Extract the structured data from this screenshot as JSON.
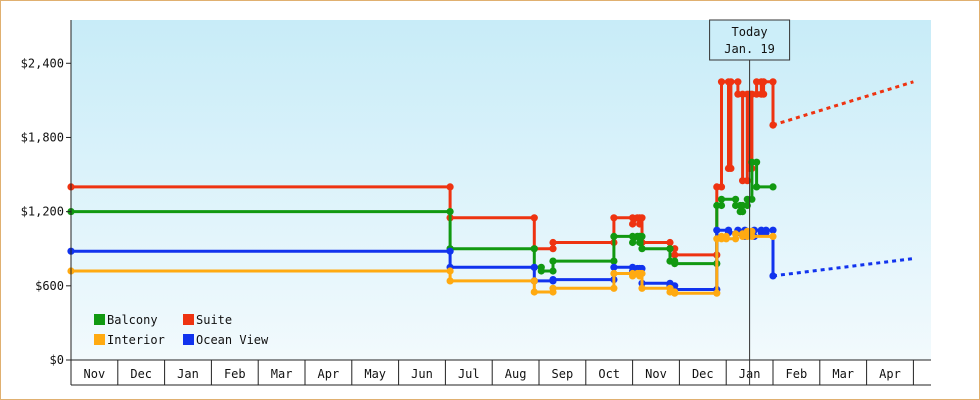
{
  "chart_data": {
    "type": "line",
    "title": "",
    "xlabel": "",
    "ylabel": "",
    "ylim": [
      0,
      2750
    ],
    "yticks": [
      {
        "value": 0,
        "label": "$0"
      },
      {
        "value": 600,
        "label": "$600"
      },
      {
        "value": 1200,
        "label": "$1,200"
      },
      {
        "value": 1800,
        "label": "$1,800"
      },
      {
        "value": 2400,
        "label": "$2,400"
      }
    ],
    "x_range_months": [
      0,
      18
    ],
    "months": [
      "Nov",
      "Dec",
      "Jan",
      "Feb",
      "Mar",
      "Apr",
      "May",
      "Jun",
      "Jul",
      "Aug",
      "Sep",
      "Oct",
      "Nov",
      "Dec",
      "Jan",
      "Feb",
      "Mar",
      "Apr"
    ],
    "today": {
      "x": 14.5,
      "line1": "Today",
      "line2": "Jan. 19"
    },
    "legend": {
      "placement": "bottom-left",
      "entries": [
        {
          "name": "Balcony",
          "color": "#119911"
        },
        {
          "name": "Suite",
          "color": "#ee3311"
        },
        {
          "name": "Interior",
          "color": "#ffaa11"
        },
        {
          "name": "Ocean View",
          "color": "#1133ee"
        }
      ]
    },
    "series": [
      {
        "name": "Suite",
        "color": "#ee3311",
        "points": [
          [
            0,
            1400
          ],
          [
            8.1,
            1400
          ],
          [
            8.1,
            1150
          ],
          [
            9.9,
            1150
          ],
          [
            9.9,
            900
          ],
          [
            10.05,
            900
          ],
          [
            10.05,
            900
          ],
          [
            10.3,
            900
          ],
          [
            10.3,
            950
          ],
          [
            11.6,
            950
          ],
          [
            11.6,
            1150
          ],
          [
            12.0,
            1150
          ],
          [
            12.0,
            1100
          ],
          [
            12.1,
            1150
          ],
          [
            12.15,
            1150
          ],
          [
            12.15,
            1100
          ],
          [
            12.2,
            1150
          ],
          [
            12.2,
            950
          ],
          [
            12.8,
            950
          ],
          [
            12.8,
            900
          ],
          [
            12.9,
            900
          ],
          [
            12.9,
            850
          ],
          [
            13.8,
            850
          ],
          [
            13.8,
            1400
          ],
          [
            13.9,
            1400
          ],
          [
            13.9,
            2250
          ],
          [
            14.05,
            2250
          ],
          [
            14.05,
            1550
          ],
          [
            14.1,
            1550
          ],
          [
            14.1,
            2250
          ],
          [
            14.25,
            2250
          ],
          [
            14.25,
            2150
          ],
          [
            14.35,
            2150
          ],
          [
            14.35,
            1450
          ],
          [
            14.45,
            1450
          ],
          [
            14.45,
            2150
          ],
          [
            14.5,
            2150
          ],
          [
            14.5,
            1550
          ],
          [
            14.55,
            1550
          ],
          [
            14.55,
            2150
          ],
          [
            14.65,
            2150
          ],
          [
            14.65,
            2250
          ],
          [
            14.75,
            2250
          ],
          [
            14.75,
            2150
          ],
          [
            14.8,
            2150
          ],
          [
            14.8,
            2250
          ],
          [
            15.0,
            2250
          ],
          [
            15.0,
            1900
          ]
        ],
        "forecast": [
          [
            15.0,
            1900
          ],
          [
            18.0,
            2250
          ]
        ]
      },
      {
        "name": "Balcony",
        "color": "#119911",
        "points": [
          [
            0,
            1200
          ],
          [
            8.1,
            1200
          ],
          [
            8.1,
            900
          ],
          [
            9.9,
            900
          ],
          [
            9.9,
            750
          ],
          [
            10.05,
            750
          ],
          [
            10.05,
            720
          ],
          [
            10.3,
            720
          ],
          [
            10.3,
            800
          ],
          [
            11.6,
            800
          ],
          [
            11.6,
            1000
          ],
          [
            12.0,
            1000
          ],
          [
            12.0,
            950
          ],
          [
            12.1,
            1000
          ],
          [
            12.15,
            1000
          ],
          [
            12.15,
            950
          ],
          [
            12.2,
            1000
          ],
          [
            12.2,
            900
          ],
          [
            12.8,
            900
          ],
          [
            12.8,
            800
          ],
          [
            12.9,
            800
          ],
          [
            12.9,
            780
          ],
          [
            13.8,
            780
          ],
          [
            13.8,
            1250
          ],
          [
            13.9,
            1250
          ],
          [
            13.9,
            1300
          ],
          [
            14.2,
            1300
          ],
          [
            14.2,
            1250
          ],
          [
            14.3,
            1250
          ],
          [
            14.3,
            1200
          ],
          [
            14.35,
            1200
          ],
          [
            14.35,
            1250
          ],
          [
            14.45,
            1250
          ],
          [
            14.45,
            1300
          ],
          [
            14.55,
            1300
          ],
          [
            14.55,
            1600
          ],
          [
            14.65,
            1600
          ],
          [
            14.65,
            1400
          ],
          [
            15.0,
            1400
          ]
        ],
        "forecast": []
      },
      {
        "name": "Ocean View",
        "color": "#1133ee",
        "points": [
          [
            0,
            880
          ],
          [
            8.1,
            880
          ],
          [
            8.1,
            750
          ],
          [
            9.9,
            750
          ],
          [
            9.9,
            640
          ],
          [
            10.05,
            640
          ],
          [
            10.05,
            640
          ],
          [
            10.3,
            640
          ],
          [
            10.3,
            650
          ],
          [
            11.6,
            650
          ],
          [
            11.6,
            750
          ],
          [
            12.0,
            750
          ],
          [
            12.0,
            720
          ],
          [
            12.1,
            740
          ],
          [
            12.15,
            740
          ],
          [
            12.15,
            720
          ],
          [
            12.2,
            740
          ],
          [
            12.2,
            620
          ],
          [
            12.8,
            620
          ],
          [
            12.8,
            600
          ],
          [
            12.9,
            600
          ],
          [
            12.9,
            570
          ],
          [
            13.8,
            570
          ],
          [
            13.8,
            1050
          ],
          [
            14.05,
            1050
          ],
          [
            14.05,
            1030
          ],
          [
            14.25,
            1030
          ],
          [
            14.25,
            1050
          ],
          [
            14.4,
            1050
          ],
          [
            14.4,
            1000
          ],
          [
            14.6,
            1000
          ],
          [
            14.6,
            1050
          ],
          [
            14.75,
            1050
          ],
          [
            14.75,
            1030
          ],
          [
            14.85,
            1030
          ],
          [
            14.85,
            1050
          ],
          [
            15.0,
            1050
          ],
          [
            15.0,
            680
          ]
        ],
        "forecast": [
          [
            15.0,
            680
          ],
          [
            18.0,
            820
          ]
        ]
      },
      {
        "name": "Interior",
        "color": "#ffaa11",
        "points": [
          [
            0,
            720
          ],
          [
            8.1,
            720
          ],
          [
            8.1,
            640
          ],
          [
            9.9,
            640
          ],
          [
            9.9,
            550
          ],
          [
            10.05,
            550
          ],
          [
            10.05,
            550
          ],
          [
            10.3,
            550
          ],
          [
            10.3,
            580
          ],
          [
            11.6,
            580
          ],
          [
            11.6,
            700
          ],
          [
            12.0,
            700
          ],
          [
            12.0,
            680
          ],
          [
            12.1,
            700
          ],
          [
            12.15,
            700
          ],
          [
            12.15,
            680
          ],
          [
            12.2,
            700
          ],
          [
            12.2,
            580
          ],
          [
            12.8,
            580
          ],
          [
            12.8,
            550
          ],
          [
            12.9,
            550
          ],
          [
            12.9,
            540
          ],
          [
            13.8,
            540
          ],
          [
            13.8,
            980
          ],
          [
            13.9,
            980
          ],
          [
            13.9,
            1000
          ],
          [
            14.0,
            1000
          ],
          [
            14.0,
            980
          ],
          [
            14.2,
            980
          ],
          [
            14.2,
            1020
          ],
          [
            14.35,
            1020
          ],
          [
            14.35,
            1000
          ],
          [
            14.45,
            1000
          ],
          [
            14.45,
            1040
          ],
          [
            14.55,
            1040
          ],
          [
            14.55,
            1000
          ],
          [
            15.0,
            1000
          ]
        ],
        "forecast": []
      }
    ]
  }
}
